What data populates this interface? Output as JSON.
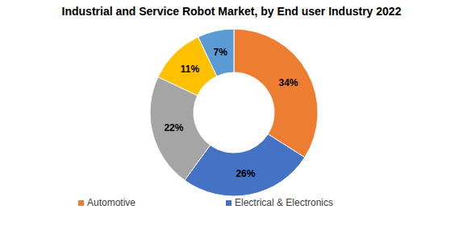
{
  "chart_data": {
    "type": "pie",
    "title": "Industrial and Service Robot Market, by End user Industry 2022",
    "categories": [
      "Automotive",
      "Electrical & Electronics",
      null,
      null,
      null
    ],
    "values": [
      34,
      26,
      22,
      11,
      7
    ],
    "value_labels": [
      "34%",
      "26%",
      "22%",
      "11%",
      "7%"
    ],
    "colors": [
      "#ed7d31",
      "#4472c4",
      "#a5a5a5",
      "#ffc000",
      "#5b9bd5"
    ],
    "data_labels": true,
    "legend": "bottom"
  }
}
